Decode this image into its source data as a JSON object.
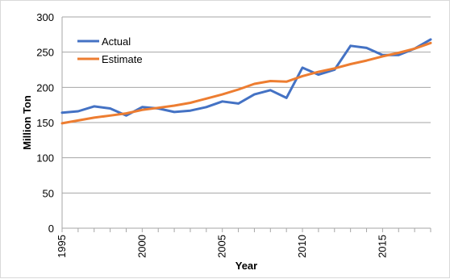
{
  "chart_data": {
    "type": "line",
    "title": "",
    "xlabel": "Year",
    "ylabel": "Million Ton",
    "xlim": [
      1995,
      2018
    ],
    "ylim": [
      0,
      300
    ],
    "x_ticks": [
      "1995",
      "2000",
      "2005",
      "2010",
      "2015"
    ],
    "y_ticks": [
      "0",
      "50",
      "100",
      "150",
      "200",
      "250",
      "300"
    ],
    "grid": "horizontal",
    "legend_position": "top-left",
    "x": [
      1995,
      1996,
      1997,
      1998,
      1999,
      2000,
      2001,
      2002,
      2003,
      2004,
      2005,
      2006,
      2007,
      2008,
      2009,
      2010,
      2011,
      2012,
      2013,
      2014,
      2015,
      2016,
      2017,
      2018
    ],
    "series": [
      {
        "name": "Actual",
        "color": "#4472c4",
        "values": [
          164,
          166,
          173,
          170,
          160,
          172,
          170,
          165,
          167,
          172,
          180,
          177,
          190,
          196,
          185,
          228,
          218,
          225,
          259,
          256,
          246,
          246,
          255,
          268
        ]
      },
      {
        "name": "Estimate",
        "color": "#ed7d31",
        "values": [
          149,
          153,
          157,
          160,
          163,
          168,
          171,
          174,
          178,
          184,
          190,
          197,
          205,
          209,
          208,
          216,
          222,
          227,
          233,
          238,
          244,
          249,
          255,
          263
        ]
      }
    ]
  }
}
